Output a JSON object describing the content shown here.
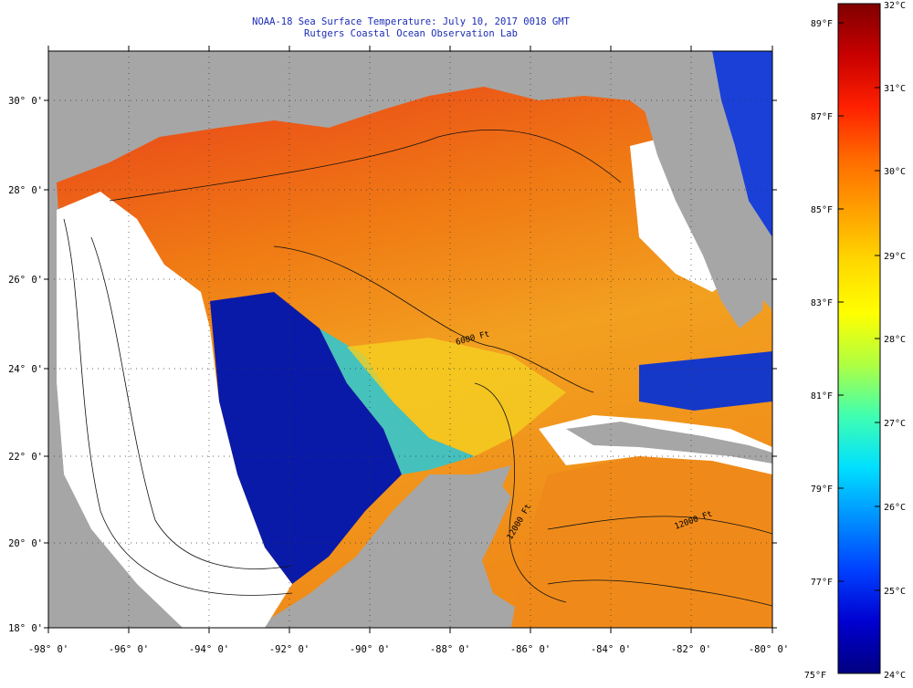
{
  "title": {
    "line1": "NOAA-18 Sea Surface Temperature:  July 10, 2017 0018 GMT",
    "line2": "Rutgers Coastal Ocean Observation Lab"
  },
  "map": {
    "lon_ticks": [
      "-98° 0'",
      "-96° 0'",
      "-94° 0'",
      "-92° 0'",
      "-90° 0'",
      "-88° 0'",
      "-86° 0'",
      "-84° 0'",
      "-82° 0'",
      "-80° 0'"
    ],
    "lat_ticks": [
      "18° 0'",
      "20° 0'",
      "22° 0'",
      "24° 0'",
      "26° 0'",
      "28° 0'",
      "30° 0'"
    ],
    "lon_range": [
      -98,
      -80
    ],
    "lat_range": [
      18,
      31
    ],
    "contour_labels": [
      "6000 Ft",
      "12000 Ft",
      "12000 Ft"
    ],
    "colors": {
      "land": "#a6a6a6",
      "cloud": "#ffffff",
      "warm": "#e0301a",
      "cool": "#00009a"
    }
  },
  "colorbar": {
    "fahrenheit": [
      "89°F",
      "87°F",
      "85°F",
      "83°F",
      "81°F",
      "79°F",
      "77°F",
      "75°F"
    ],
    "celsius": [
      "32°C",
      "31°C",
      "30°C",
      "29°C",
      "28°C",
      "27°C",
      "26°C",
      "25°C",
      "24°C"
    ],
    "gradient": [
      "#800000",
      "#c80000",
      "#ff2000",
      "#ff6a00",
      "#ffa000",
      "#ffd800",
      "#ffff00",
      "#b0ff40",
      "#40ffb0",
      "#00e0ff",
      "#0090ff",
      "#0040ff",
      "#0000d0",
      "#000080"
    ]
  }
}
